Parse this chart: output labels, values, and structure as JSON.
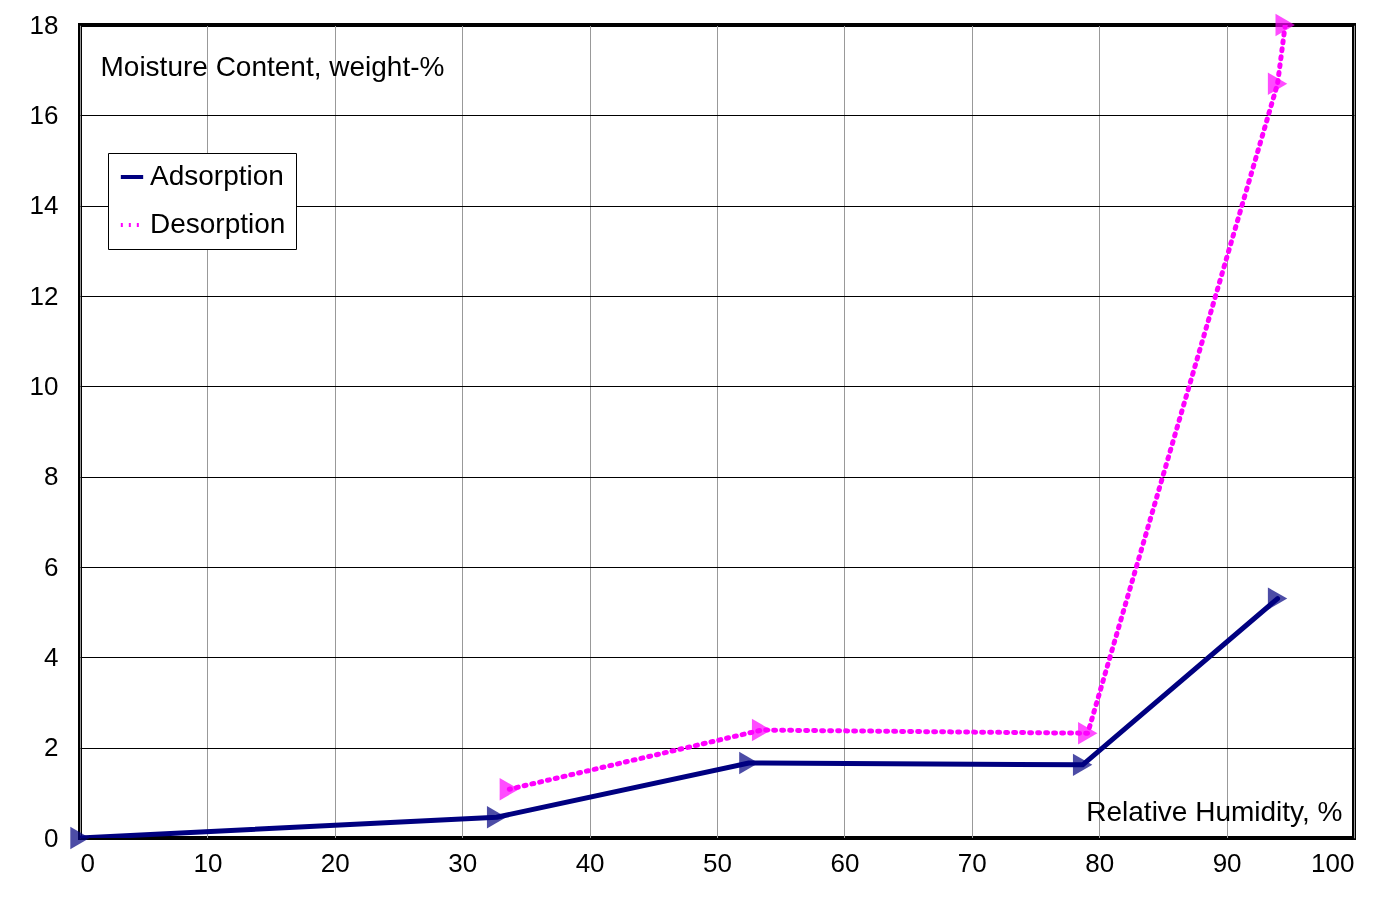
{
  "chart_data": {
    "type": "line",
    "xlabel": "Relative Humidity, %",
    "ylabel": "Moisture Content, weight-%",
    "xlim": [
      0,
      100
    ],
    "xticks": [
      0,
      10,
      20,
      30,
      40,
      50,
      60,
      70,
      80,
      90,
      100
    ],
    "ylim": [
      0,
      18
    ],
    "yticks": [
      0,
      2,
      4,
      6,
      8,
      10,
      12,
      14,
      16,
      18
    ],
    "grid": true,
    "legend": "top left",
    "marker": "triangle",
    "series": [
      {
        "name": "Adsorption",
        "color": "#000080",
        "line_style": "solid",
        "x": [
          0,
          32.7,
          52.5,
          78.7,
          94
        ],
        "values": [
          0,
          0.46,
          1.66,
          1.62,
          5.3
        ]
      },
      {
        "name": "Desorption",
        "color": "#ff00ff",
        "line_style": "dotted",
        "x": [
          94.6,
          94,
          79.1,
          53.5,
          33.7
        ],
        "values": [
          18,
          16.7,
          2.32,
          2.39,
          1.08
        ]
      }
    ]
  }
}
